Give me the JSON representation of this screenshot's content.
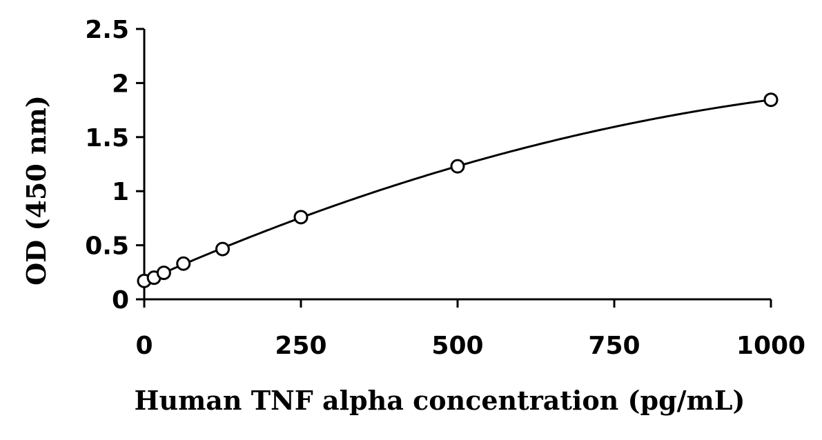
{
  "chart_data": {
    "type": "scatter",
    "xlabel": "Human TNF alpha concentration (pg/mL)",
    "ylabel": "OD (450 nm)",
    "xlim": [
      0,
      1000
    ],
    "ylim": [
      0,
      2.5
    ],
    "x_ticks": [
      0,
      250,
      500,
      750,
      1000
    ],
    "y_ticks": [
      0,
      0.5,
      1,
      1.5,
      2,
      2.5
    ],
    "x_tick_labels": [
      "0",
      "250",
      "500",
      "750",
      "1000"
    ],
    "y_tick_labels": [
      "0",
      "0.5",
      "1",
      "1.5",
      "2",
      "2.5"
    ],
    "grid": false,
    "fit_curve": true,
    "series": [
      {
        "x": [
          0,
          15.6,
          31.25,
          62.5,
          125,
          250,
          500,
          1000
        ],
        "y": [
          0.17,
          0.2,
          0.245,
          0.33,
          0.465,
          0.76,
          1.23,
          1.845
        ]
      }
    ]
  }
}
